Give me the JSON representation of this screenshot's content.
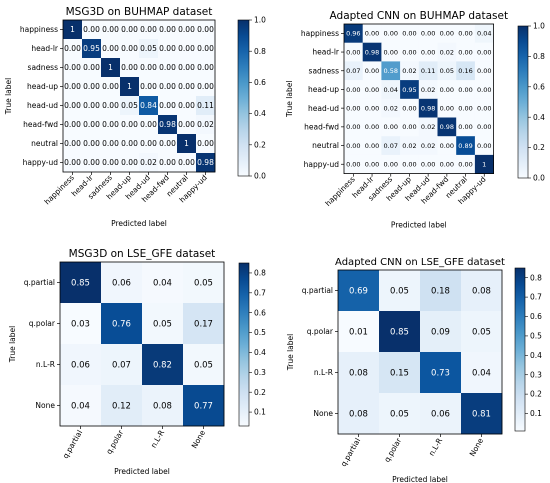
{
  "chart_data": [
    {
      "type": "heatmap",
      "title": "MSG3D on BUHMAP dataset",
      "xlabel": "Predicted label",
      "ylabel": "True label",
      "categories": [
        "happiness",
        "head-lr",
        "sadness",
        "head-up",
        "head-ud",
        "head-fwd",
        "neutral",
        "happy-ud"
      ],
      "matrix": [
        [
          "1",
          "0.00",
          "0.00",
          "0.00",
          "0.00",
          "0.00",
          "0.00",
          "0.00"
        ],
        [
          "0.00",
          "0.95",
          "0.00",
          "0.00",
          "0.05",
          "0.00",
          "0.00",
          "0.00"
        ],
        [
          "0.00",
          "0.00",
          "1",
          "0.00",
          "0.00",
          "0.00",
          "0.00",
          "0.00"
        ],
        [
          "0.00",
          "0.00",
          "0.00",
          "1",
          "0.00",
          "0.00",
          "0.00",
          "0.00"
        ],
        [
          "0.00",
          "0.00",
          "0.00",
          "0.05",
          "0.84",
          "0.00",
          "0.00",
          "0.11"
        ],
        [
          "0.00",
          "0.00",
          "0.00",
          "0.00",
          "0.00",
          "0.98",
          "0.00",
          "0.02"
        ],
        [
          "0.00",
          "0.00",
          "0.00",
          "0.00",
          "0.00",
          "0.00",
          "1",
          "0.00"
        ],
        [
          "0.00",
          "0.00",
          "0.00",
          "0.00",
          "0.02",
          "0.00",
          "0.00",
          "0.98"
        ]
      ],
      "colorbar": {
        "vmin": 0,
        "vmax": 1.0,
        "ticks": [
          "0.0",
          "0.2",
          "0.4",
          "0.6",
          "0.8",
          "1.0"
        ],
        "cmap": "Blues"
      }
    },
    {
      "type": "heatmap",
      "title": "Adapted CNN on BUHMAP dataset",
      "xlabel": "Predicted label",
      "ylabel": "True label",
      "categories": [
        "happiness",
        "head-lr",
        "sadness",
        "head-up",
        "head-ud",
        "head-fwd",
        "neutral",
        "happy-ud"
      ],
      "matrix": [
        [
          "0.96",
          "0.00",
          "0.00",
          "0.00",
          "0.00",
          "0.00",
          "0.00",
          "0.04"
        ],
        [
          "0.00",
          "0.98",
          "0.00",
          "0.00",
          "0.00",
          "0.02",
          "0.00",
          "0.00"
        ],
        [
          "0.07",
          "0.00",
          "0.58",
          "0.02",
          "0.11",
          "0.05",
          "0.16",
          "0.00"
        ],
        [
          "0.00",
          "0.00",
          "0.04",
          "0.95",
          "0.02",
          "0.00",
          "0.00",
          "0.00"
        ],
        [
          "0.00",
          "0.00",
          "0.02",
          "0.00",
          "0.98",
          "0.00",
          "0.00",
          "0.00"
        ],
        [
          "0.00",
          "0.00",
          "0.00",
          "0.00",
          "0.02",
          "0.98",
          "0.00",
          "0.00"
        ],
        [
          "0.00",
          "0.00",
          "0.07",
          "0.02",
          "0.02",
          "0.00",
          "0.89",
          "0.00"
        ],
        [
          "0.00",
          "0.00",
          "0.00",
          "0.00",
          "0.00",
          "0.00",
          "0.00",
          "1"
        ]
      ],
      "colorbar": {
        "vmin": 0,
        "vmax": 1.0,
        "ticks": [
          "0.0",
          "0.2",
          "0.4",
          "0.6",
          "0.8",
          "1.0"
        ],
        "cmap": "Blues"
      }
    },
    {
      "type": "heatmap",
      "title": "MSG3D on LSE_GFE dataset",
      "xlabel": "Predicted label",
      "ylabel": "True label",
      "categories": [
        "q.partial",
        "q.polar",
        "n.L-R",
        "None"
      ],
      "matrix": [
        [
          "0.85",
          "0.06",
          "0.04",
          "0.05"
        ],
        [
          "0.03",
          "0.76",
          "0.05",
          "0.17"
        ],
        [
          "0.06",
          "0.07",
          "0.82",
          "0.05"
        ],
        [
          "0.04",
          "0.12",
          "0.08",
          "0.77"
        ]
      ],
      "colorbar": {
        "vmin": 0.03,
        "vmax": 0.85,
        "ticks": [
          "0.1",
          "0.2",
          "0.3",
          "0.4",
          "0.5",
          "0.6",
          "0.7",
          "0.8"
        ],
        "cmap": "Blues"
      }
    },
    {
      "type": "heatmap",
      "title": "Adapted CNN on LSE_GFE dataset",
      "xlabel": "Predicted label",
      "ylabel": "True label",
      "categories": [
        "q.partial",
        "q.polar",
        "n.L-R",
        "None"
      ],
      "matrix": [
        [
          "0.69",
          "0.05",
          "0.18",
          "0.08"
        ],
        [
          "0.01",
          "0.85",
          "0.09",
          "0.05"
        ],
        [
          "0.08",
          "0.15",
          "0.73",
          "0.04"
        ],
        [
          "0.08",
          "0.05",
          "0.06",
          "0.81"
        ]
      ],
      "colorbar": {
        "vmin": 0.01,
        "vmax": 0.85,
        "ticks": [
          "0.1",
          "0.2",
          "0.3",
          "0.4",
          "0.5",
          "0.6",
          "0.7",
          "0.8"
        ],
        "cmap": "Blues"
      }
    }
  ]
}
